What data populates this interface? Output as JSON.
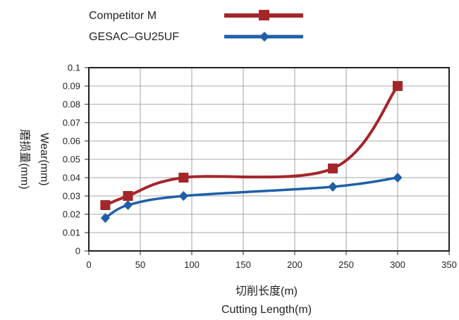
{
  "chart_data": {
    "type": "line",
    "xlabel": [
      "切削长度(m)",
      "Cutting Length(m)"
    ],
    "ylabel": [
      "磨损量(mm)",
      "Wear(mm)"
    ],
    "xlim": [
      0,
      350
    ],
    "ylim": [
      0,
      0.1
    ],
    "x_ticks": [
      0,
      50,
      100,
      150,
      200,
      250,
      300,
      350
    ],
    "x_tick_labels": [
      "0",
      "50",
      "100",
      "150",
      "200",
      "250",
      "300",
      "350"
    ],
    "y_ticks": [
      0,
      0.01,
      0.02,
      0.03,
      0.04,
      0.05,
      0.06,
      0.07,
      0.08,
      0.09,
      0.1
    ],
    "y_tick_labels": [
      "0",
      "0.01",
      "0.02",
      "0.03",
      "0.04",
      "0.05",
      "0.06",
      "0.07",
      "0.08",
      "0.09",
      "0.1"
    ],
    "grid": true,
    "legend_position": "top-left, above plot",
    "series": [
      {
        "name": "Competitor M",
        "color": "#a3262b",
        "marker": "square",
        "x": [
          16,
          38,
          92,
          237,
          300
        ],
        "y": [
          0.025,
          0.03,
          0.04,
          0.045,
          0.09
        ]
      },
      {
        "name": "GESAC–GU25UF",
        "color": "#1f5fa8",
        "marker": "diamond",
        "x": [
          16,
          38,
          92,
          237,
          300
        ],
        "y": [
          0.018,
          0.025,
          0.03,
          0.035,
          0.04
        ]
      }
    ]
  }
}
